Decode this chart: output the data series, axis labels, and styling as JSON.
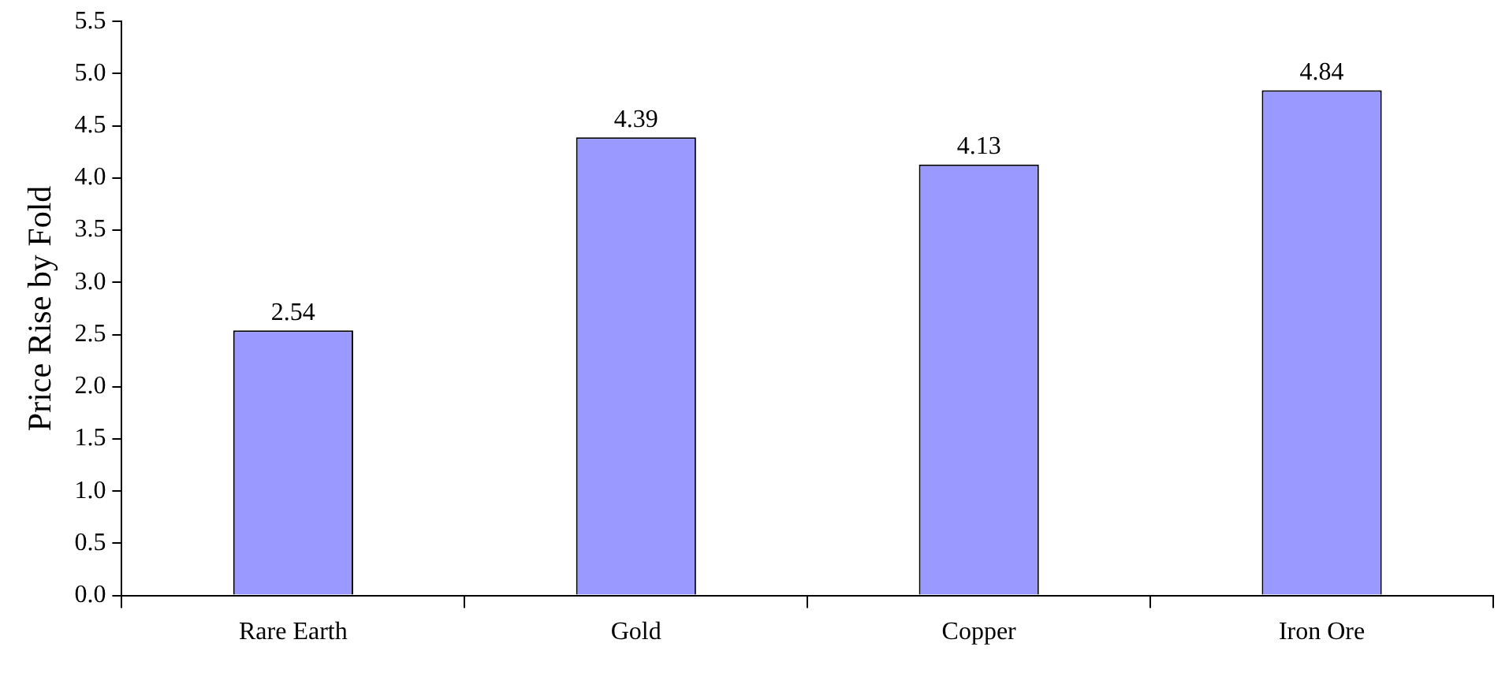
{
  "chart_data": {
    "type": "bar",
    "ylabel": "Price Rise by Fold",
    "categories": [
      "Rare Earth",
      "Gold",
      "Copper",
      "Iron Ore"
    ],
    "values": [
      2.54,
      4.39,
      4.13,
      4.84
    ],
    "color": "#9999ff",
    "ylim": [
      0,
      5.5
    ],
    "yticks": [
      {
        "value": 0,
        "label": "0.0"
      },
      {
        "value": 0.5,
        "label": "0.5"
      },
      {
        "value": 1,
        "label": "1.0"
      },
      {
        "value": 1.5,
        "label": "1.5"
      },
      {
        "value": 2,
        "label": "2.0"
      },
      {
        "value": 2.5,
        "label": "2.5"
      },
      {
        "value": 3,
        "label": "3.0"
      },
      {
        "value": 3.5,
        "label": "3.5"
      },
      {
        "value": 4,
        "label": "4.0"
      },
      {
        "value": 4.5,
        "label": "4.5"
      },
      {
        "value": 5,
        "label": "5.0"
      },
      {
        "value": 5.5,
        "label": "5.5"
      }
    ],
    "data_labels": true,
    "grid": false,
    "legend": false
  }
}
